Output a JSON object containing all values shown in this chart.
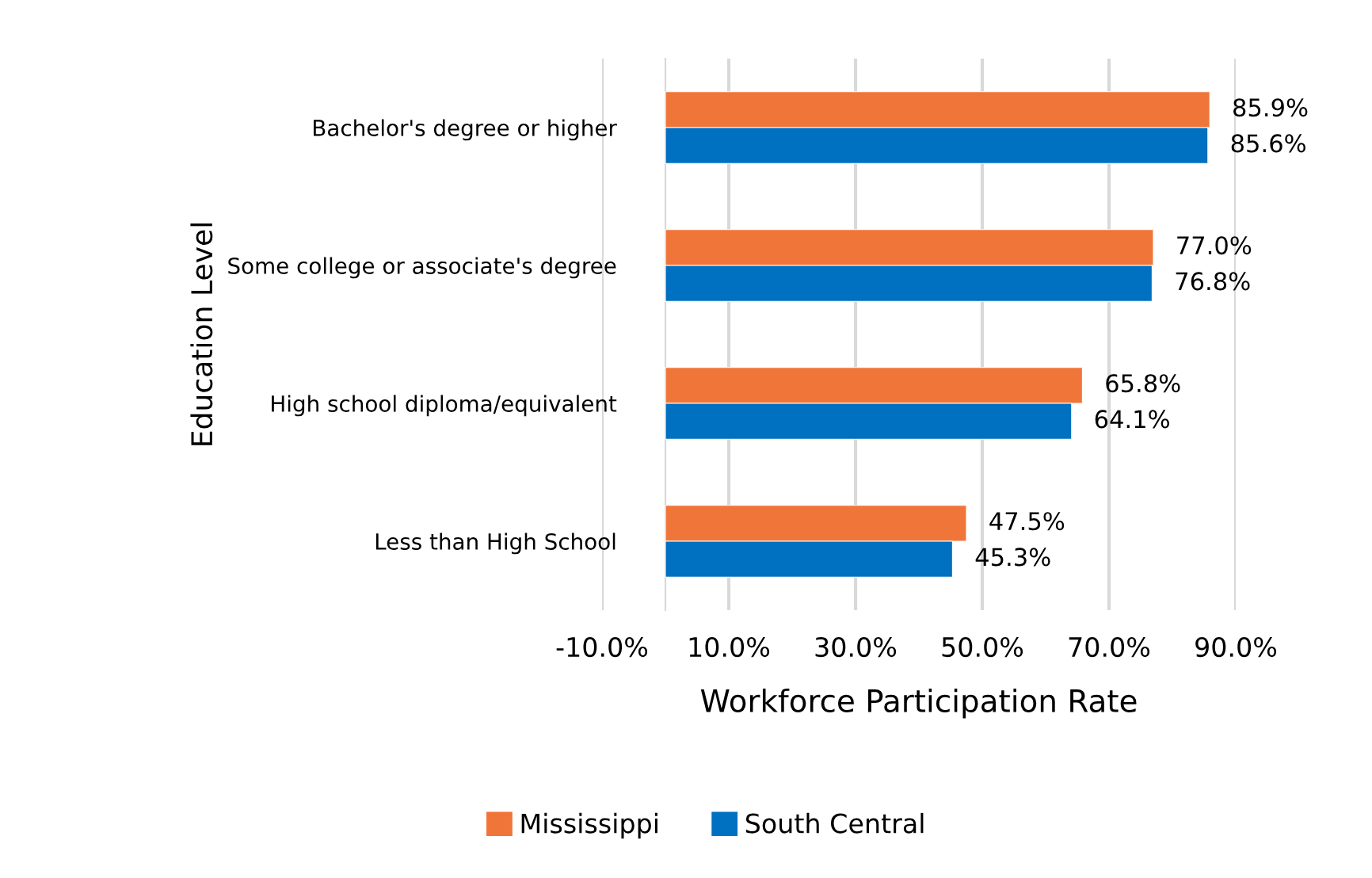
{
  "chart_data": {
    "type": "bar",
    "orientation": "horizontal",
    "xlabel": "Workforce Participation Rate",
    "ylabel": "Education Level",
    "categories": [
      "Bachelor's degree or higher",
      "Some college or associate's degree",
      "High school diploma/equivalent",
      "Less than High School"
    ],
    "series": [
      {
        "name": "Mississippi",
        "color": "#f07539",
        "values": [
          85.9,
          77.0,
          65.8,
          47.5
        ],
        "value_labels": [
          "85.9%",
          "77.0%",
          "65.8%",
          "47.5%"
        ]
      },
      {
        "name": "South Central",
        "color": "#0070c0",
        "values": [
          85.6,
          76.8,
          64.1,
          45.3
        ],
        "value_labels": [
          "85.6%",
          "76.8%",
          "64.1%",
          "45.3%"
        ]
      }
    ],
    "xlim": [
      -10,
      90
    ],
    "xticks": [
      {
        "value": -10,
        "label": "-10.0%"
      },
      {
        "value": 10,
        "label": "10.0%"
      },
      {
        "value": 30,
        "label": "30.0%"
      },
      {
        "value": 50,
        "label": "50.0%"
      },
      {
        "value": 70,
        "label": "70.0%"
      },
      {
        "value": 90,
        "label": "90.0%"
      }
    ],
    "grid": "x",
    "legend": "bottom"
  }
}
